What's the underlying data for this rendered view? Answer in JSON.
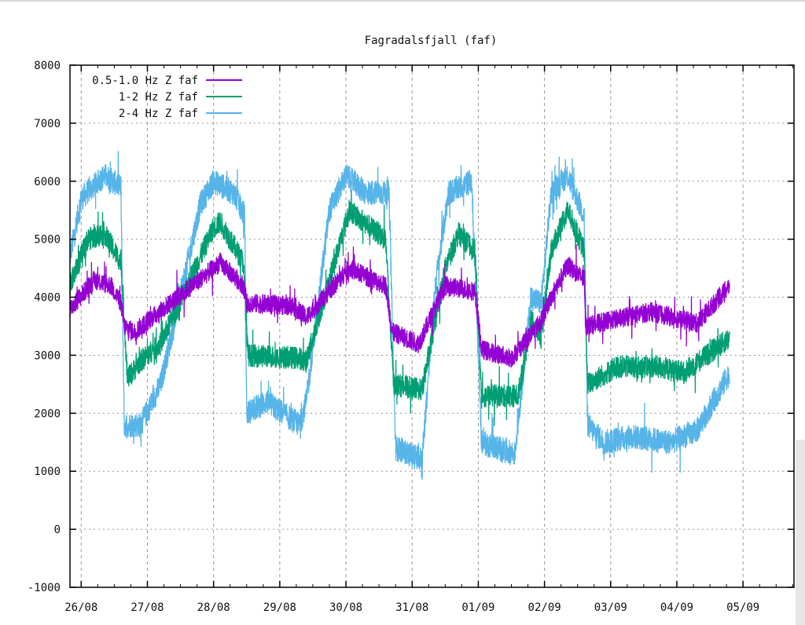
{
  "chart_data": {
    "type": "line",
    "title": "Fagradalsfjall (faf)",
    "xlabel": "",
    "ylabel": "",
    "ylim": [
      -1000,
      8000
    ],
    "yticks": [
      "-1000",
      "0",
      "1000",
      "2000",
      "3000",
      "4000",
      "5000",
      "6000",
      "7000",
      "8000"
    ],
    "xlim_days_from_26_08": [
      -0.17,
      10.77
    ],
    "xticks": [
      "26/08",
      "27/08",
      "28/08",
      "29/08",
      "30/08",
      "31/08",
      "01/09",
      "02/09",
      "03/09",
      "04/09",
      "05/09"
    ],
    "grid": true,
    "legend_position": "top-left",
    "series": [
      {
        "name": "0.5-1.0 Hz Z faf",
        "color": "#9400d3",
        "x": [
          -0.17,
          0.2,
          0.45,
          0.6,
          0.65,
          0.8,
          2.0,
          2.1,
          2.45,
          2.5,
          3.2,
          3.4,
          4.05,
          4.6,
          4.7,
          5.1,
          5.3,
          5.5,
          5.95,
          6.05,
          6.5,
          6.75,
          6.95,
          7.1,
          7.35,
          7.6,
          7.62,
          8.0,
          8.6,
          9.3,
          9.8
        ],
        "y": [
          3800,
          4300,
          4200,
          3900,
          3500,
          3400,
          4500,
          4600,
          4200,
          3900,
          3850,
          3650,
          4500,
          4200,
          3400,
          3200,
          3700,
          4200,
          4100,
          3100,
          2950,
          3300,
          3600,
          4000,
          4550,
          4300,
          3500,
          3600,
          3750,
          3550,
          4200
        ]
      },
      {
        "name": "1-2 Hz Z faf",
        "color": "#009e73",
        "x": [
          -0.17,
          0.1,
          0.35,
          0.6,
          0.7,
          0.9,
          1.2,
          2.0,
          2.1,
          2.45,
          2.52,
          3.3,
          3.4,
          4.05,
          4.6,
          4.72,
          5.15,
          5.5,
          5.7,
          5.95,
          6.05,
          6.6,
          6.8,
          6.95,
          7.1,
          7.35,
          7.6,
          7.65,
          8.1,
          8.7,
          9.1,
          9.8
        ],
        "y": [
          4200,
          5000,
          5100,
          4600,
          2600,
          2900,
          3200,
          5200,
          5300,
          4600,
          3000,
          2950,
          2900,
          5500,
          5000,
          2500,
          2400,
          4500,
          5100,
          4800,
          2300,
          2300,
          3600,
          3300,
          4800,
          5500,
          4800,
          2500,
          2800,
          2800,
          2700,
          3300
        ]
      },
      {
        "name": "2-4 Hz Z faf",
        "color": "#56b4e9",
        "x": [
          -0.17,
          0.0,
          0.35,
          0.6,
          0.65,
          0.9,
          1.2,
          1.8,
          2.0,
          2.3,
          2.47,
          2.5,
          2.8,
          3.3,
          3.4,
          3.75,
          4.0,
          4.3,
          4.65,
          4.75,
          5.15,
          5.35,
          5.55,
          5.9,
          6.05,
          6.55,
          6.8,
          6.95,
          7.1,
          7.35,
          7.6,
          7.65,
          7.9,
          8.3,
          8.9,
          9.3,
          9.8
        ],
        "y": [
          4700,
          5700,
          6100,
          5900,
          1800,
          1800,
          2500,
          5600,
          6000,
          5800,
          5400,
          2000,
          2200,
          1800,
          2200,
          5500,
          6100,
          5800,
          5800,
          1400,
          1200,
          4200,
          5800,
          6000,
          1500,
          1300,
          4000,
          3900,
          5800,
          6100,
          5400,
          1800,
          1500,
          1600,
          1500,
          1700,
          2700
        ]
      }
    ]
  }
}
